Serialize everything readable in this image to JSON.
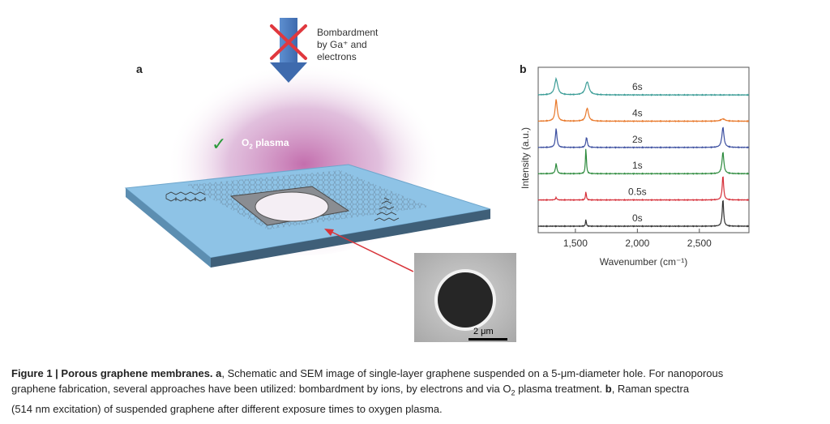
{
  "panel_a": {
    "label": "a",
    "bombardment_lines": [
      "Bombardment",
      "by Ga⁺ and",
      "electrons"
    ],
    "o2_label": "O",
    "o2_sub": "2",
    "o2_suffix": " plasma",
    "check_symbol": "✓",
    "scale_label": "2 μm",
    "colors": {
      "arrow": "#4a7bc0",
      "cross": "#e0383e",
      "substrate": "#8ec3e6",
      "plasma": "#c06bb1",
      "pointer": "#d8343a"
    }
  },
  "panel_b": {
    "label": "b"
  },
  "chart_data": {
    "type": "line",
    "xlabel": "Wavenumber (cm⁻¹)",
    "ylabel": "Intensity (a.u.)",
    "xlim": [
      1200,
      2900
    ],
    "xticks": [
      1500,
      2000,
      2500
    ],
    "xtick_labels": [
      "1,500",
      "2,000",
      "2,500"
    ],
    "series": [
      {
        "name": "6s",
        "color": "#3a9c96",
        "offset": 5,
        "peaks": [
          [
            1345,
            0.55,
            30
          ],
          [
            1595,
            0.45,
            35
          ]
        ]
      },
      {
        "name": "4s",
        "color": "#e8782a",
        "offset": 4,
        "peaks": [
          [
            1345,
            0.75,
            20
          ],
          [
            1595,
            0.45,
            25
          ],
          [
            2690,
            0.08,
            40
          ]
        ]
      },
      {
        "name": "2s",
        "color": "#3c4fa0",
        "offset": 3,
        "peaks": [
          [
            1345,
            0.65,
            15
          ],
          [
            1590,
            0.35,
            14
          ],
          [
            2690,
            0.7,
            20
          ]
        ]
      },
      {
        "name": "1s",
        "color": "#2e8b3e",
        "offset": 2,
        "peaks": [
          [
            1345,
            0.35,
            14
          ],
          [
            1585,
            0.9,
            9
          ],
          [
            2690,
            0.75,
            18
          ]
        ]
      },
      {
        "name": "0.5s",
        "color": "#d6303a",
        "offset": 1,
        "peaks": [
          [
            1345,
            0.08,
            12
          ],
          [
            1585,
            0.3,
            8
          ],
          [
            2690,
            0.85,
            14
          ]
        ]
      },
      {
        "name": "0s",
        "color": "#333333",
        "offset": 0,
        "peaks": [
          [
            1585,
            0.25,
            7
          ],
          [
            2690,
            0.95,
            13
          ]
        ]
      }
    ]
  },
  "caption": {
    "bold_title": "Figure 1 | Porous graphene membranes.",
    "a_label": "a",
    "text1": ", Schematic and SEM image of single-layer graphene suspended on a 5-μm-diameter hole. For nanoporous",
    "text2": "graphene fabrication, several approaches have been utilized: bombardment by ions, by electrons and via O",
    "text2_sub": "2",
    "text2_tail": " plasma treatment. ",
    "b_label": "b",
    "text2_end": ", Raman spectra",
    "text3": "(514 nm excitation) of suspended graphene after different exposure times to oxygen plasma."
  }
}
